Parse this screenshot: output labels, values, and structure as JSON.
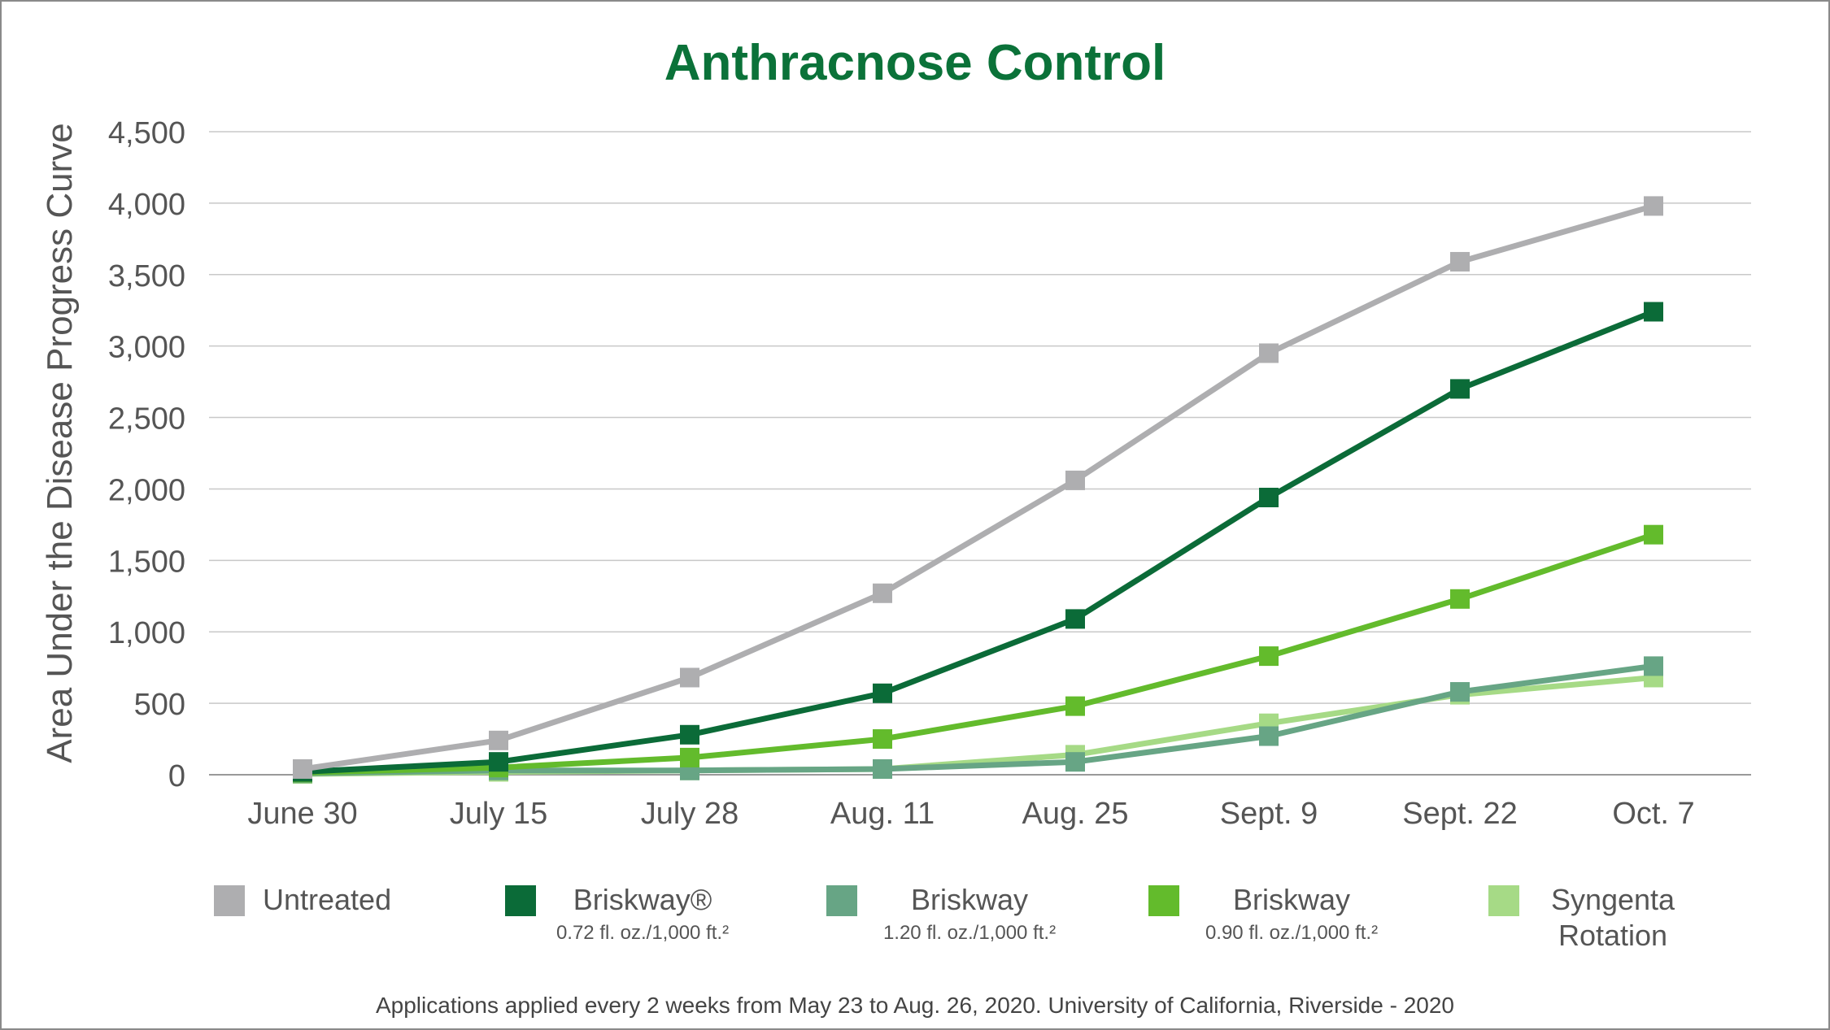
{
  "chart_data": {
    "type": "line",
    "title": "Anthracnose Control",
    "xlabel": "",
    "ylabel": "Area Under the Disease Progress Curve",
    "categories": [
      "June 30",
      "July 15",
      "July 28",
      "Aug. 11",
      "Aug. 25",
      "Sept. 9",
      "Sept. 22",
      "Oct. 7"
    ],
    "ylim": [
      0,
      4500
    ],
    "yticks": [
      "0",
      "500",
      "1,000",
      "1,500",
      "2,000",
      "2,500",
      "3,000",
      "3,500",
      "4,000",
      "4,500"
    ],
    "grid": true,
    "legend_position": "bottom",
    "series": [
      {
        "name": "Untreated",
        "sub": "",
        "color": "#aeaeb0",
        "values": [
          40,
          240,
          680,
          1270,
          2060,
          2950,
          3590,
          3980
        ]
      },
      {
        "name": "Briskway®",
        "sub": "0.72 fl. oz./1,000 ft.²",
        "color": "#0b6b38",
        "values": [
          20,
          90,
          280,
          570,
          1090,
          1940,
          2700,
          3240
        ]
      },
      {
        "name": "Briskway",
        "sub": "1.20 fl. oz./1,000 ft.²",
        "color": "#67a585",
        "values": [
          10,
          30,
          30,
          40,
          90,
          270,
          580,
          760
        ]
      },
      {
        "name": "Briskway",
        "sub": "0.90 fl. oz./1,000 ft.²",
        "color": "#63bb2c",
        "values": [
          15,
          50,
          120,
          250,
          480,
          830,
          1230,
          1680
        ]
      },
      {
        "name": "Syngenta Rotation",
        "sub": "",
        "color": "#a6da86",
        "values": [
          5,
          20,
          30,
          40,
          140,
          360,
          560,
          680
        ]
      }
    ],
    "footnote": "Applications applied every 2 weeks from May 23 to Aug. 26, 2020. University of California, Riverside - 2020"
  }
}
